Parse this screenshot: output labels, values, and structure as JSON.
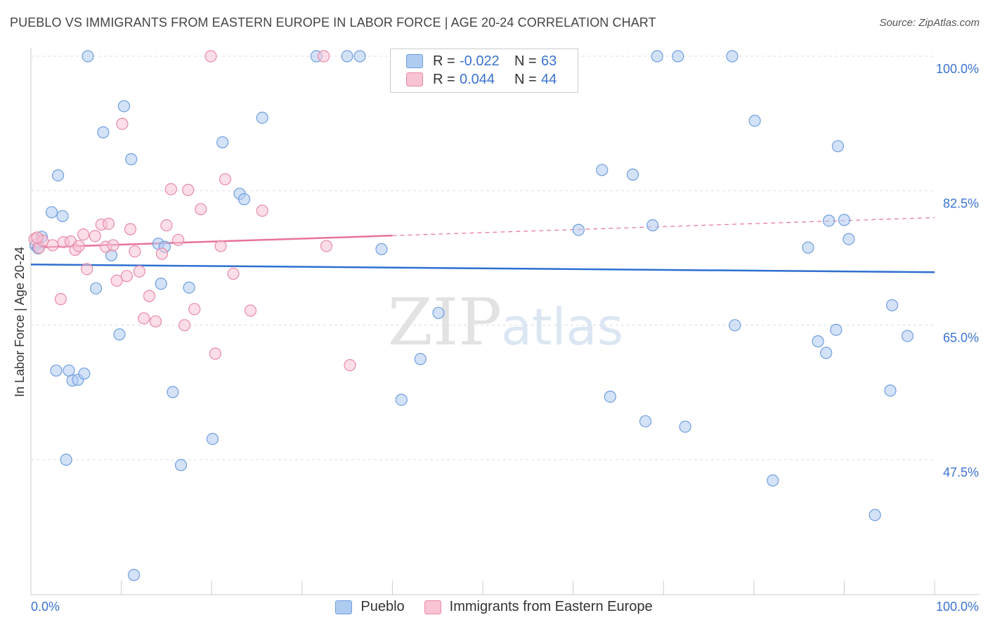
{
  "header": {
    "title": "PUEBLO VS IMMIGRANTS FROM EASTERN EUROPE IN LABOR FORCE | AGE 20-24 CORRELATION CHART",
    "source": "Source: ZipAtlas.com"
  },
  "watermark": {
    "zip": "ZIP",
    "atlas": "atlas"
  },
  "legend": {
    "rows": [
      {
        "r_label": "R =",
        "r_value": "-0.022",
        "n_label": "N =",
        "n_value": "63"
      },
      {
        "r_label": "R =",
        "r_value": "0.044",
        "n_label": "N =",
        "n_value": "44"
      }
    ]
  },
  "colors": {
    "pueblo_fill": "#aecbf0",
    "pueblo_stroke": "#6f9ee0",
    "pueblo_line": "#2e6fd0",
    "eastern_fill": "#f8c3d3",
    "eastern_stroke": "#e88aa8",
    "eastern_line": "#e8729b",
    "tick_label": "#3b73d1",
    "grid": "#dddddd"
  },
  "chart_data": {
    "type": "scatter",
    "title": "PUEBLO VS IMMIGRANTS FROM EASTERN EUROPE IN LABOR FORCE | AGE 20-24 CORRELATION CHART",
    "xlabel": "",
    "ylabel": "In Labor Force | Age 20-24",
    "xlim": [
      0,
      100
    ],
    "ylim": [
      31.5,
      102
    ],
    "x_tick_labels": [
      "0.0%",
      "100.0%"
    ],
    "y_ticks": [
      47.5,
      65.0,
      82.5,
      100.0
    ],
    "y_tick_labels": [
      "47.5%",
      "65.0%",
      "82.5%",
      "100.0%"
    ],
    "grid": true,
    "legend_position": "bottom",
    "series": [
      {
        "name": "Pueblo",
        "r": -0.022,
        "n": 63,
        "trend": {
          "x": [
            0,
            100
          ],
          "y": [
            72.9,
            71.9
          ],
          "dashed_from": null
        },
        "points": [
          [
            0.5,
            75.4
          ],
          [
            1.2,
            76.5
          ],
          [
            2.3,
            79.7
          ],
          [
            2.8,
            59.1
          ],
          [
            3.0,
            84.5
          ],
          [
            3.5,
            79.2
          ],
          [
            3.9,
            47.5
          ],
          [
            4.2,
            59.1
          ],
          [
            4.6,
            57.8
          ],
          [
            5.2,
            57.9
          ],
          [
            5.9,
            58.7
          ],
          [
            6.3,
            100
          ],
          [
            7.2,
            69.8
          ],
          [
            8.0,
            90.1
          ],
          [
            8.9,
            74.1
          ],
          [
            9.8,
            63.8
          ],
          [
            10.3,
            93.5
          ],
          [
            11.1,
            86.6
          ],
          [
            11.4,
            32.5
          ],
          [
            14.1,
            75.6
          ],
          [
            14.4,
            70.4
          ],
          [
            14.8,
            75.2
          ],
          [
            15.7,
            56.3
          ],
          [
            16.6,
            46.8
          ],
          [
            17.5,
            69.9
          ],
          [
            20.1,
            50.2
          ],
          [
            21.2,
            88.8
          ],
          [
            23.1,
            82.1
          ],
          [
            23.6,
            81.4
          ],
          [
            25.6,
            92.0
          ],
          [
            31.6,
            100
          ],
          [
            35.0,
            100
          ],
          [
            36.4,
            100
          ],
          [
            38.8,
            74.9
          ],
          [
            41.0,
            55.3
          ],
          [
            43.1,
            60.6
          ],
          [
            45.1,
            66.6
          ],
          [
            60.6,
            77.4
          ],
          [
            63.2,
            85.2
          ],
          [
            64.1,
            55.7
          ],
          [
            66.6,
            84.6
          ],
          [
            68.0,
            52.5
          ],
          [
            68.8,
            78.0
          ],
          [
            69.3,
            100
          ],
          [
            71.6,
            100
          ],
          [
            72.4,
            51.8
          ],
          [
            77.6,
            100
          ],
          [
            77.9,
            65.0
          ],
          [
            80.1,
            91.6
          ],
          [
            82.1,
            44.8
          ],
          [
            86.0,
            75.1
          ],
          [
            87.1,
            62.9
          ],
          [
            88.0,
            61.4
          ],
          [
            88.3,
            78.6
          ],
          [
            89.1,
            64.4
          ],
          [
            89.3,
            88.3
          ],
          [
            90.0,
            78.7
          ],
          [
            90.5,
            76.2
          ],
          [
            93.4,
            40.3
          ],
          [
            95.1,
            56.5
          ],
          [
            95.3,
            67.6
          ],
          [
            97.0,
            63.6
          ],
          [
            0.8,
            75.0
          ]
        ]
      },
      {
        "name": "Immigrants from Eastern Europe",
        "r": 0.044,
        "n": 44,
        "trend": {
          "x": [
            0,
            100
          ],
          "y": [
            75.1,
            79.0
          ],
          "dashed_from": 40
        },
        "points": [
          [
            0.4,
            76.2
          ],
          [
            0.9,
            75.1
          ],
          [
            1.3,
            76.0
          ],
          [
            2.4,
            75.4
          ],
          [
            3.3,
            68.4
          ],
          [
            3.6,
            75.8
          ],
          [
            4.4,
            75.9
          ],
          [
            4.9,
            74.8
          ],
          [
            5.3,
            75.3
          ],
          [
            5.8,
            76.8
          ],
          [
            6.2,
            72.3
          ],
          [
            7.1,
            76.6
          ],
          [
            7.8,
            78.1
          ],
          [
            8.3,
            75.2
          ],
          [
            8.6,
            78.2
          ],
          [
            9.1,
            75.4
          ],
          [
            9.5,
            70.8
          ],
          [
            10.1,
            91.2
          ],
          [
            10.6,
            71.4
          ],
          [
            11.0,
            77.5
          ],
          [
            11.5,
            74.6
          ],
          [
            12.0,
            72.0
          ],
          [
            12.5,
            65.9
          ],
          [
            13.1,
            68.8
          ],
          [
            13.8,
            65.5
          ],
          [
            14.5,
            74.3
          ],
          [
            15.0,
            78.0
          ],
          [
            15.5,
            82.7
          ],
          [
            16.3,
            76.1
          ],
          [
            17.0,
            65.0
          ],
          [
            17.4,
            82.6
          ],
          [
            18.1,
            67.1
          ],
          [
            18.8,
            80.1
          ],
          [
            19.9,
            100
          ],
          [
            20.4,
            61.3
          ],
          [
            21.0,
            75.3
          ],
          [
            21.5,
            84.0
          ],
          [
            22.4,
            71.7
          ],
          [
            24.3,
            66.9
          ],
          [
            25.6,
            79.9
          ],
          [
            32.4,
            100
          ],
          [
            32.7,
            75.3
          ],
          [
            35.3,
            59.8
          ],
          [
            0.7,
            76.4
          ]
        ]
      }
    ]
  }
}
